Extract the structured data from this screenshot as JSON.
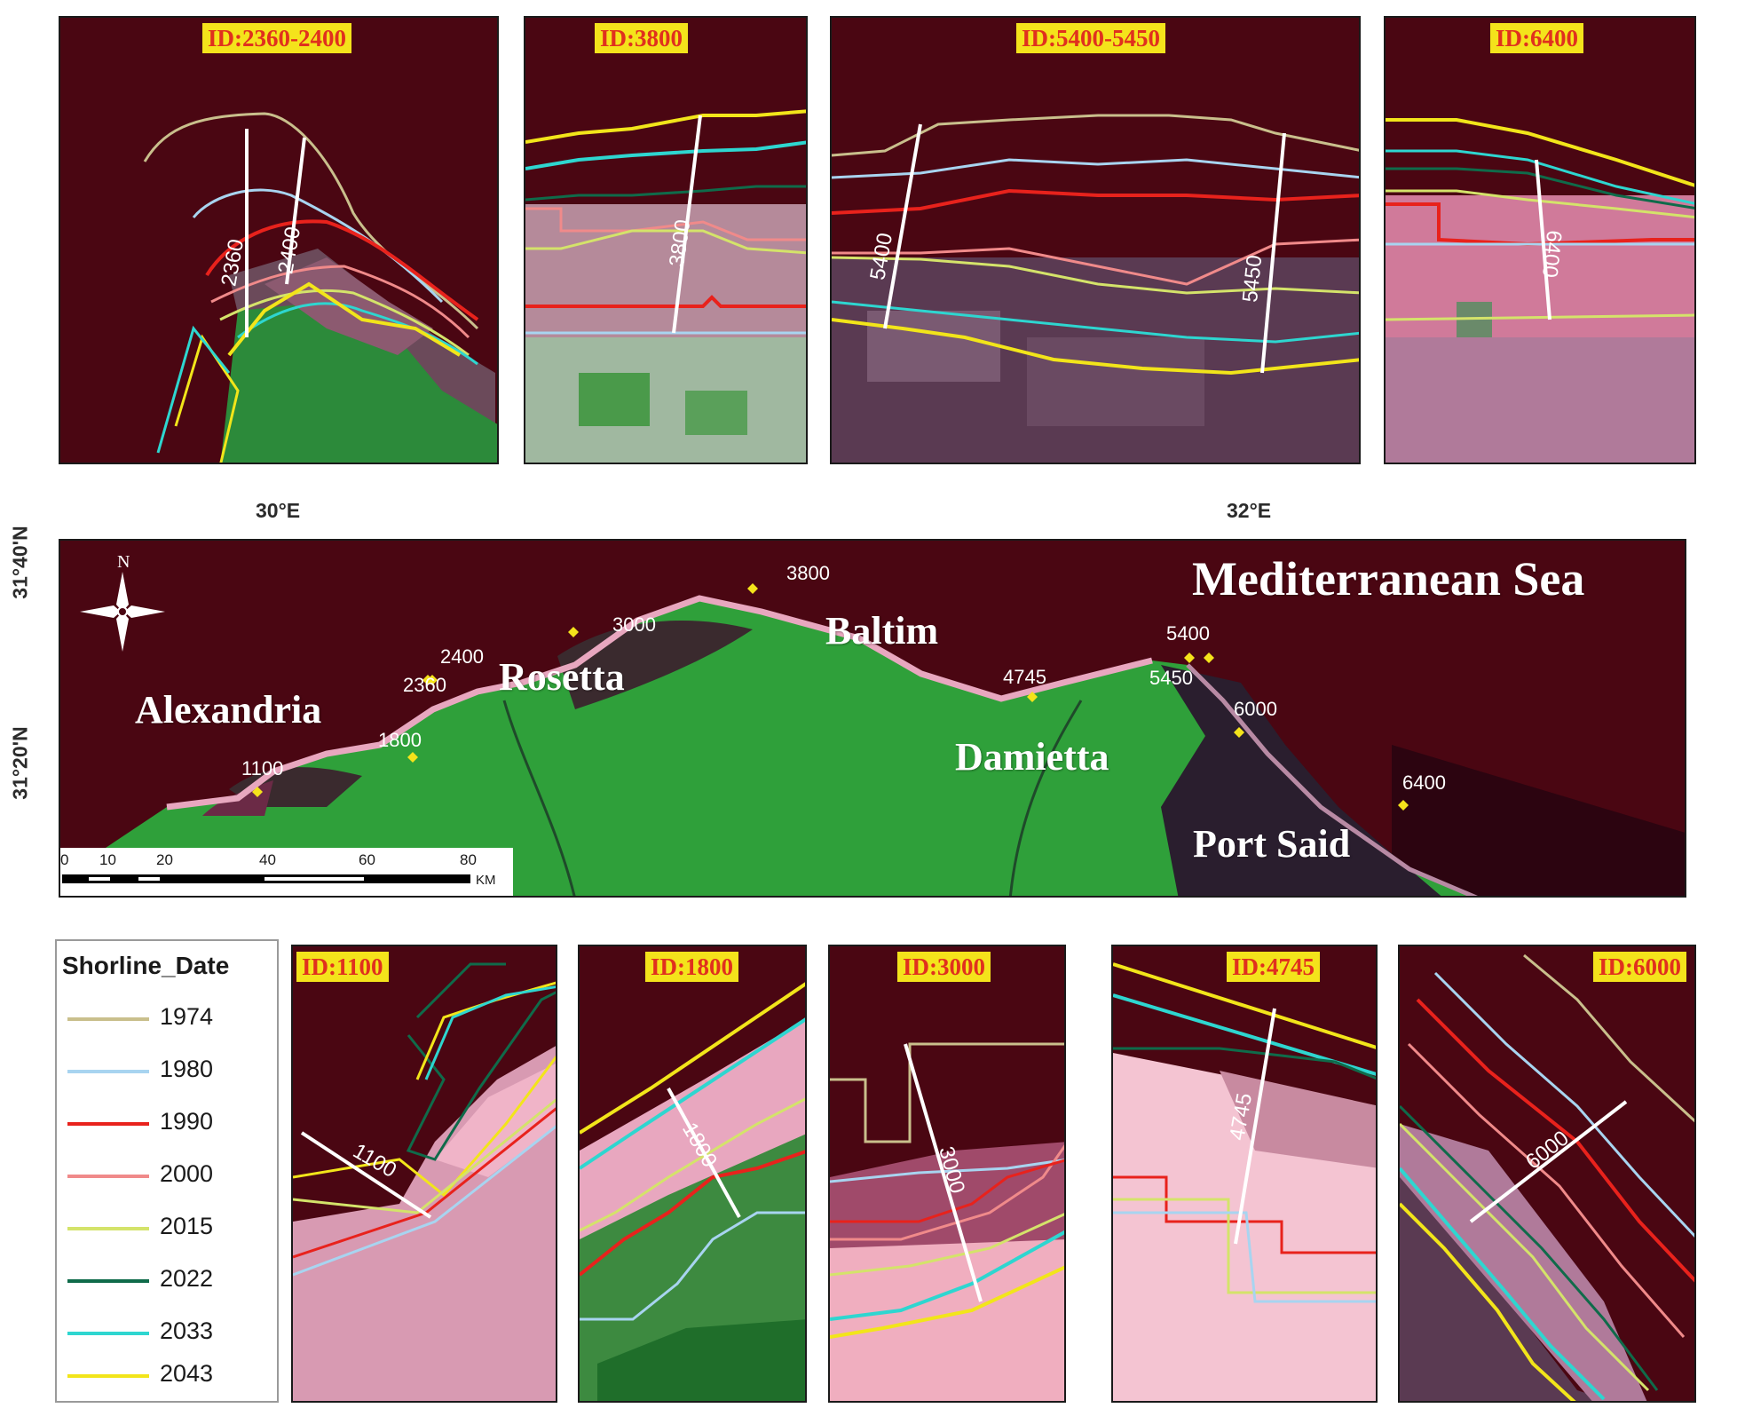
{
  "top_panels": [
    {
      "id_label": "ID:2360-2400",
      "transects": [
        "2360",
        "2400"
      ]
    },
    {
      "id_label": "ID:3800",
      "transects": [
        "3800"
      ]
    },
    {
      "id_label": "ID:5400-5450",
      "transects": [
        "5400",
        "5450"
      ]
    },
    {
      "id_label": "ID:6400",
      "transects": [
        "6400"
      ]
    }
  ],
  "bottom_panels": [
    {
      "id_label": "ID:1100",
      "transects": [
        "1100"
      ]
    },
    {
      "id_label": "ID:1800",
      "transects": [
        "1800"
      ]
    },
    {
      "id_label": "ID:3000",
      "transects": [
        "3000"
      ]
    },
    {
      "id_label": "ID:4745",
      "transects": [
        "4745"
      ]
    },
    {
      "id_label": "ID:6000",
      "transects": [
        "6000"
      ]
    }
  ],
  "main_map": {
    "lon_labels": [
      "30°E",
      "32°E"
    ],
    "lat_labels": [
      "31°40'N",
      "31°20'N"
    ],
    "sea_label": "Mediterranean Sea",
    "cities": [
      "Alexandria",
      "Rosetta",
      "Baltim",
      "Damietta",
      "Port Said"
    ],
    "north_arrow": "N",
    "transect_points": [
      "1100",
      "1800",
      "2360",
      "2400",
      "3000",
      "3800",
      "4745",
      "5400",
      "5450",
      "6000",
      "6400"
    ],
    "scale": {
      "ticks": [
        "0",
        "10",
        "20",
        "40",
        "60",
        "80"
      ],
      "unit": "KM"
    }
  },
  "legend": {
    "title": "Shorline_Date",
    "entries": [
      {
        "year": "1974",
        "color": "#c9bf8c"
      },
      {
        "year": "1980",
        "color": "#a8d4f0"
      },
      {
        "year": "1990",
        "color": "#e8221c"
      },
      {
        "year": "2000",
        "color": "#f08a8a"
      },
      {
        "year": "2015",
        "color": "#d4e36a"
      },
      {
        "year": "2022",
        "color": "#0f6b4a"
      },
      {
        "year": "2033",
        "color": "#2ed6d0"
      },
      {
        "year": "2043",
        "color": "#f2e51a"
      }
    ]
  },
  "colors": {
    "sea": "#4a0612",
    "land": "#2fa03a",
    "sand": "#e8a7bf",
    "transect": "#ffffff",
    "id_tag_bg": "#f4e31b",
    "id_tag_text": "#e0301e"
  }
}
